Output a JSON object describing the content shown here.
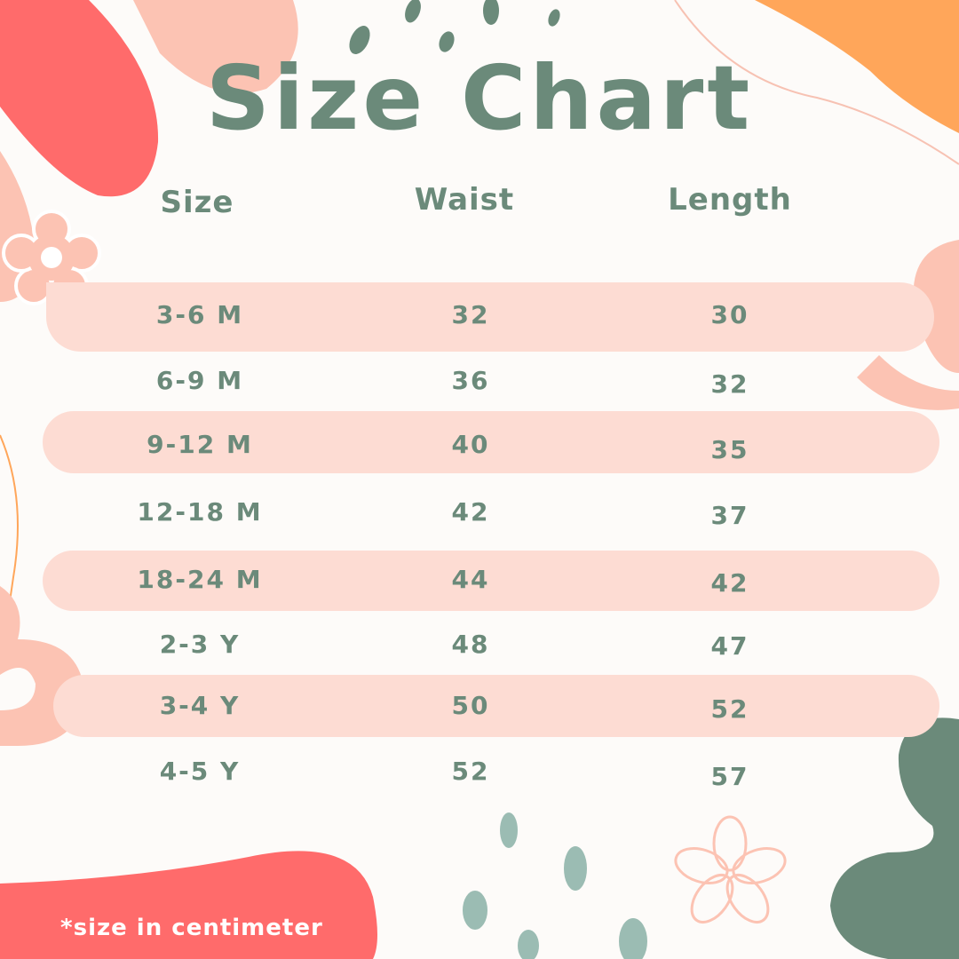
{
  "title": "Size Chart",
  "headers": {
    "size": "Size",
    "waist": "Waist",
    "length": "Length"
  },
  "rows": [
    {
      "size": "3-6 M",
      "waist": "32",
      "length": "30"
    },
    {
      "size": "6-9 M",
      "waist": "36",
      "length": "32"
    },
    {
      "size": "9-12 M",
      "waist": "40",
      "length": "35"
    },
    {
      "size": "12-18 M",
      "waist": "42",
      "length": "37"
    },
    {
      "size": "18-24 M",
      "waist": "44",
      "length": "42"
    },
    {
      "size": "2-3 Y",
      "waist": "48",
      "length": "47"
    },
    {
      "size": "3-4 Y",
      "waist": "50",
      "length": "52"
    },
    {
      "size": "4-5 Y",
      "waist": "52",
      "length": "57"
    }
  ],
  "footnote": "*size in centimeter",
  "colors": {
    "text": "#6b8a7a",
    "band": "#fddcd3",
    "coral": "#ff6b6b",
    "peach": "#fcc3b3",
    "orange": "#ffa65a",
    "sage": "#9bbcb3"
  }
}
